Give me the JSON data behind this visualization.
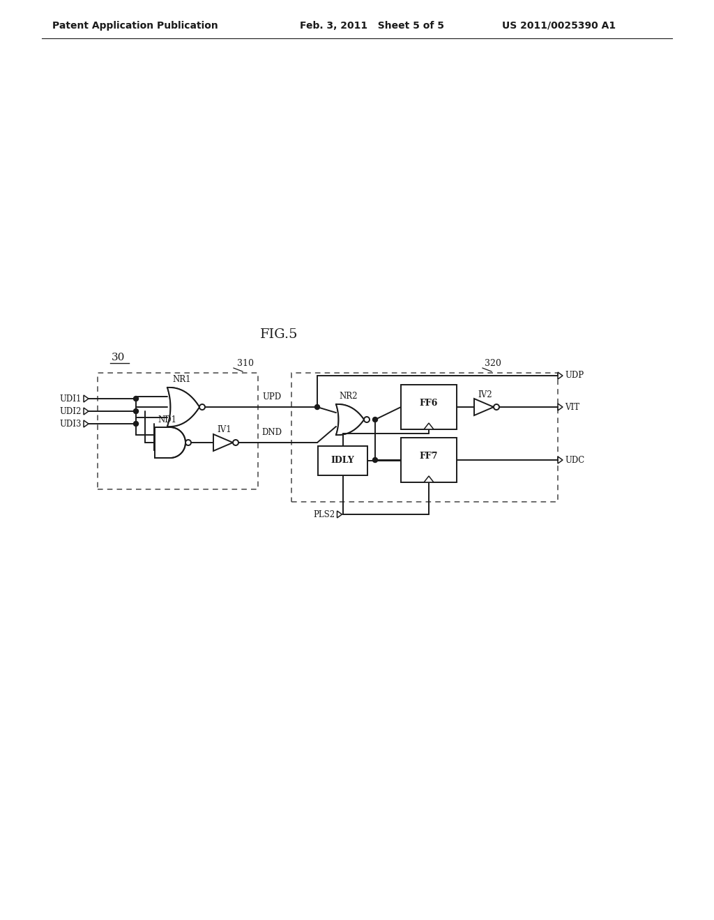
{
  "title": "FIG.5",
  "label_30": "30",
  "label_310": "310",
  "label_320": "320",
  "header_left": "Patent Application Publication",
  "header_mid": "Feb. 3, 2011   Sheet 5 of 5",
  "header_right": "US 2011/0025390 A1",
  "bg_color": "#ffffff",
  "line_color": "#1a1a1a",
  "font_size_header": 10,
  "font_size_title": 14,
  "font_size_label": 10,
  "font_size_gate": 9
}
